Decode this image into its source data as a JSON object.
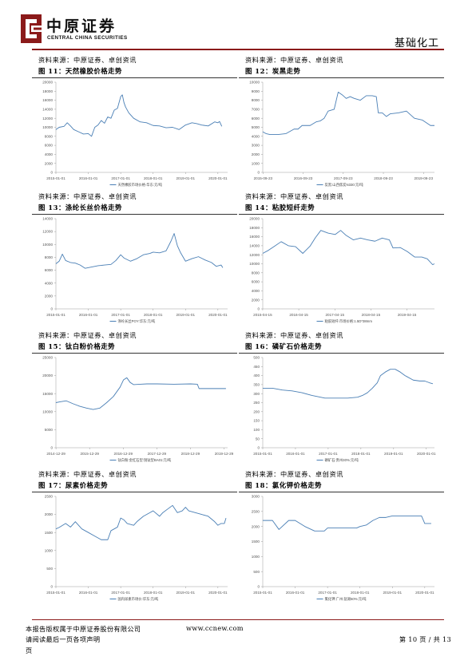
{
  "header": {
    "logo_cn": "中原证券",
    "logo_en": "CENTRAL CHINA SECURITIES",
    "section": "基础化工",
    "accent": "#8b1a1a",
    "line_color": "#4a7fb5"
  },
  "charts": [
    {
      "source": "资料来源：中原证券、卓创资讯",
      "title": "图 11：天然橡胶价格走势"
    },
    {
      "source": "资料来源：中原证券、卓创资讯",
      "title": "图 12：炭黑走势"
    },
    {
      "source": "资料来源：中原证券、卓创资讯",
      "title": "图 13：涤纶长丝价格走势"
    },
    {
      "source": "资料来源：中原证券、卓创资讯",
      "title": "图 14：粘胶短纤走势"
    },
    {
      "source": "资料来源：中原证券、卓创资讯",
      "title": "图 15：钛白粉价格走势"
    },
    {
      "source": "资料来源：中原证券、卓创资讯",
      "title": "图 16：磷矿石价格走势"
    },
    {
      "source": "资料来源：中原证券、卓创资讯",
      "title": "图 17：尿素价格走势"
    },
    {
      "source": "资料来源：中原证券、卓创资讯",
      "title": "图 18：氯化钾价格走势"
    }
  ],
  "chart_data": [
    {
      "type": "line",
      "yticks": [
        "0",
        "2000",
        "4000",
        "6000",
        "8000",
        "10000",
        "12000",
        "14000",
        "16000",
        "18000",
        "20000"
      ],
      "ylim": [
        0,
        20000
      ],
      "xticks": [
        "2015-01-01",
        "2016-01-01",
        "2017-01-01",
        "2018-01-01",
        "2019-01-01",
        "2020-01-01"
      ],
      "xlim": [
        2015.0,
        2020.3
      ],
      "series": [
        {
          "name": "天然橡胶市场价格-华东:元/吨",
          "x": [
            2015.0,
            2015.1,
            2015.25,
            2015.35,
            2015.45,
            2015.55,
            2015.7,
            2015.85,
            2016.0,
            2016.1,
            2016.2,
            2016.3,
            2016.4,
            2016.5,
            2016.6,
            2016.7,
            2016.8,
            2016.9,
            2017.0,
            2017.05,
            2017.1,
            2017.15,
            2017.25,
            2017.4,
            2017.6,
            2017.8,
            2018.0,
            2018.2,
            2018.4,
            2018.6,
            2018.8,
            2019.0,
            2019.2,
            2019.35,
            2019.5,
            2019.7,
            2019.9,
            2020.0,
            2020.05,
            2020.12
          ],
          "y": [
            9500,
            10000,
            10200,
            11000,
            10300,
            9500,
            9000,
            8500,
            8600,
            8000,
            10000,
            10500,
            11500,
            10900,
            12300,
            12000,
            13800,
            14200,
            16800,
            17200,
            15500,
            14500,
            13200,
            12000,
            11200,
            11000,
            10400,
            10300,
            9900,
            10000,
            9500,
            10500,
            11000,
            10800,
            10500,
            10300,
            11200,
            11000,
            11300,
            10200
          ]
        }
      ]
    },
    {
      "type": "line",
      "yticks": [
        "0",
        "1000",
        "2000",
        "3000",
        "4000",
        "5000",
        "6000",
        "7000",
        "8000",
        "9000",
        "10000"
      ],
      "ylim": [
        0,
        10000
      ],
      "xticks": [
        "2015-09-23",
        "2016-09-23",
        "2017-09-23",
        "2018-09-23",
        "2019-09-23"
      ],
      "xlim": [
        2015.72,
        2020.0
      ],
      "series": [
        {
          "name": "炭黑:山西焦炭N330:元/吨",
          "x": [
            2015.72,
            2015.8,
            2015.9,
            2016.1,
            2016.3,
            2016.5,
            2016.6,
            2016.7,
            2016.9,
            2017.05,
            2017.15,
            2017.25,
            2017.35,
            2017.5,
            2017.6,
            2017.7,
            2017.8,
            2017.9,
            2018.0,
            2018.15,
            2018.3,
            2018.45,
            2018.55,
            2018.6,
            2018.7,
            2018.8,
            2018.9,
            2019.1,
            2019.3,
            2019.5,
            2019.7,
            2019.9,
            2020.0
          ],
          "y": [
            4500,
            4300,
            4200,
            4200,
            4300,
            4800,
            4800,
            5200,
            5200,
            5600,
            5700,
            6000,
            6800,
            7000,
            8900,
            8600,
            8200,
            8400,
            8200,
            8000,
            8500,
            8500,
            8400,
            6600,
            6600,
            6200,
            6500,
            6600,
            6800,
            6000,
            5800,
            5200,
            5200
          ]
        }
      ]
    },
    {
      "type": "line",
      "yticks": [
        "0",
        "2000",
        "4000",
        "6000",
        "8000",
        "10000",
        "12000",
        "14000"
      ],
      "ylim": [
        0,
        14000
      ],
      "xticks": [
        "2015-01-01",
        "2016-01-01",
        "2017-01-01",
        "2018-01-01",
        "2019-01-01",
        "2020-01-01"
      ],
      "xlim": [
        2015.0,
        2020.3
      ],
      "series": [
        {
          "name": "涤纶长丝POY:华东:元/吨",
          "x": [
            2015.0,
            2015.1,
            2015.2,
            2015.3,
            2015.45,
            2015.6,
            2015.75,
            2015.9,
            2016.1,
            2016.3,
            2016.5,
            2016.7,
            2016.85,
            2017.0,
            2017.1,
            2017.3,
            2017.5,
            2017.7,
            2017.9,
            2018.0,
            2018.2,
            2018.4,
            2018.55,
            2018.65,
            2018.75,
            2018.85,
            2019.0,
            2019.2,
            2019.4,
            2019.6,
            2019.8,
            2019.95,
            2020.1,
            2020.15
          ],
          "y": [
            7000,
            7400,
            8500,
            7500,
            7200,
            7100,
            6800,
            6300,
            6500,
            6700,
            6800,
            6900,
            7500,
            8400,
            7900,
            7400,
            7800,
            8400,
            8600,
            8800,
            8700,
            9000,
            10500,
            11700,
            9800,
            8700,
            7400,
            7800,
            8100,
            7600,
            7200,
            6600,
            6800,
            6400
          ]
        }
      ]
    },
    {
      "type": "line",
      "yticks": [
        "0",
        "2000",
        "4000",
        "6000",
        "8000",
        "10000",
        "12000",
        "14000",
        "16000",
        "18000",
        "20000"
      ],
      "ylim": [
        0,
        20000
      ],
      "xticks": [
        "2015-04-15",
        "2016-04-15",
        "2017-04-15",
        "2018-04-15",
        "2019-04-15"
      ],
      "xlim": [
        2015.29,
        2020.05
      ],
      "series": [
        {
          "name": "粘胶短纤:市场价格:1.5D*38mm",
          "x": [
            2015.29,
            2015.45,
            2015.6,
            2015.8,
            2016.0,
            2016.2,
            2016.4,
            2016.6,
            2016.75,
            2016.9,
            2017.1,
            2017.3,
            2017.45,
            2017.6,
            2017.8,
            2018.0,
            2018.2,
            2018.4,
            2018.6,
            2018.8,
            2018.9,
            2019.1,
            2019.3,
            2019.5,
            2019.7,
            2019.85,
            2020.0,
            2020.05
          ],
          "y": [
            12300,
            13000,
            13800,
            14900,
            14000,
            13800,
            12300,
            13900,
            15800,
            17400,
            16800,
            16500,
            17400,
            16300,
            15300,
            15700,
            15300,
            15000,
            15700,
            15300,
            13500,
            13600,
            12700,
            11500,
            11500,
            11100,
            9800,
            10000
          ]
        }
      ]
    },
    {
      "type": "line",
      "yticks": [
        "0",
        "5000",
        "10000",
        "15000",
        "20000",
        "25000"
      ],
      "ylim": [
        0,
        25000
      ],
      "xticks": [
        "2014-12-29",
        "2015-12-29",
        "2016-12-29",
        "2017-12-29",
        "2018-12-29",
        "2019-12-29"
      ],
      "xlim": [
        2014.99,
        2020.1
      ],
      "series": [
        {
          "name": "钛白粉:金红石型:锐钛型BA01:元/吨",
          "x": [
            2014.99,
            2015.1,
            2015.3,
            2015.5,
            2015.7,
            2015.9,
            2016.1,
            2016.3,
            2016.5,
            2016.7,
            2016.9,
            2017.0,
            2017.1,
            2017.2,
            2017.3,
            2017.5,
            2017.7,
            2018.0,
            2018.5,
            2019.0,
            2019.2,
            2019.25,
            2019.5,
            2019.9,
            2020.05
          ],
          "y": [
            12500,
            12700,
            13000,
            12200,
            11500,
            11000,
            10600,
            11000,
            12500,
            14200,
            16800,
            18800,
            19400,
            18100,
            17500,
            17600,
            17700,
            17700,
            17600,
            17700,
            17600,
            16400,
            16400,
            16400,
            16400
          ]
        }
      ]
    },
    {
      "type": "line",
      "yticks": [
        "0",
        "50",
        "100",
        "150",
        "200",
        "250",
        "300",
        "350",
        "400",
        "450",
        "500"
      ],
      "ylim": [
        0,
        500
      ],
      "xticks": [
        "2015-01-01",
        "2016-01-01",
        "2017-01-01",
        "2018-01-01",
        "2019-01-01",
        "2020-01-01"
      ],
      "xlim": [
        2015.0,
        2020.25
      ],
      "series": [
        {
          "name": "磷矿石:贵州30%:元/吨",
          "x": [
            2015.0,
            2015.3,
            2015.6,
            2015.9,
            2016.2,
            2016.5,
            2016.9,
            2017.2,
            2017.6,
            2017.9,
            2018.05,
            2018.2,
            2018.35,
            2018.5,
            2018.6,
            2018.75,
            2018.9,
            2019.05,
            2019.2,
            2019.35,
            2019.6,
            2019.8,
            2019.95,
            2020.1,
            2020.2
          ],
          "y": [
            330,
            330,
            320,
            315,
            305,
            290,
            275,
            275,
            275,
            280,
            290,
            305,
            330,
            360,
            400,
            420,
            435,
            435,
            420,
            400,
            375,
            370,
            370,
            360,
            355
          ]
        }
      ]
    },
    {
      "type": "line",
      "yticks": [
        "0",
        "500",
        "1000",
        "1500",
        "2000",
        "2500"
      ],
      "ylim": [
        0,
        2500
      ],
      "xticks": [
        "2015-01-01",
        "2016-01-01",
        "2017-01-01",
        "2018-01-01",
        "2019-01-01",
        "2020-01-01"
      ],
      "xlim": [
        2015.0,
        2020.3
      ],
      "series": [
        {
          "name": "国内尿素市场价:华东:元/吨",
          "x": [
            2015.0,
            2015.1,
            2015.3,
            2015.45,
            2015.6,
            2015.8,
            2016.0,
            2016.2,
            2016.4,
            2016.6,
            2016.7,
            2016.8,
            2016.9,
            2017.0,
            2017.1,
            2017.2,
            2017.4,
            2017.5,
            2017.7,
            2017.9,
            2018.0,
            2018.2,
            2018.3,
            2018.45,
            2018.6,
            2018.75,
            2018.9,
            2019.0,
            2019.1,
            2019.3,
            2019.5,
            2019.7,
            2019.9,
            2020.0,
            2020.1,
            2020.2,
            2020.25
          ],
          "y": [
            1600,
            1640,
            1750,
            1650,
            1800,
            1600,
            1500,
            1400,
            1300,
            1300,
            1550,
            1600,
            1650,
            1900,
            1850,
            1750,
            1700,
            1800,
            1950,
            2050,
            2100,
            1950,
            2050,
            2150,
            2250,
            2050,
            2100,
            2200,
            2100,
            2050,
            2000,
            1950,
            1800,
            1700,
            1750,
            1750,
            1900
          ]
        }
      ]
    },
    {
      "type": "line",
      "yticks": [
        "0",
        "500",
        "1000",
        "1500",
        "2000",
        "2500",
        "3000"
      ],
      "ylim": [
        0,
        3000
      ],
      "xticks": [
        "2015-01-01",
        "2016-01-01",
        "2017-01-01",
        "2018-01-01",
        "2019-01-01",
        "2020-01-01"
      ],
      "xlim": [
        2015.0,
        2020.3
      ],
      "series": [
        {
          "name": "氯化钾:广州:盐湖60%:元/吨",
          "x": [
            2015.0,
            2015.3,
            2015.5,
            2015.8,
            2016.0,
            2016.3,
            2016.6,
            2016.9,
            2017.0,
            2017.3,
            2017.6,
            2017.9,
            2018.0,
            2018.2,
            2018.4,
            2018.6,
            2018.8,
            2019.0,
            2019.3,
            2019.6,
            2019.9,
            2020.0,
            2020.05,
            2020.2
          ],
          "y": [
            2200,
            2200,
            1900,
            2200,
            2200,
            2000,
            1850,
            1850,
            1950,
            1950,
            1950,
            1950,
            2000,
            2050,
            2200,
            2300,
            2300,
            2350,
            2350,
            2350,
            2350,
            2100,
            2100,
            2100
          ]
        }
      ]
    }
  ],
  "footer": {
    "copyright": "本报告版权属于中原证券股份有限公司",
    "website": "www.ccnew.com",
    "notice": "请阅读最后一页各项声明",
    "notice_tail": "页",
    "page": "第 10 页 / 共 13"
  }
}
